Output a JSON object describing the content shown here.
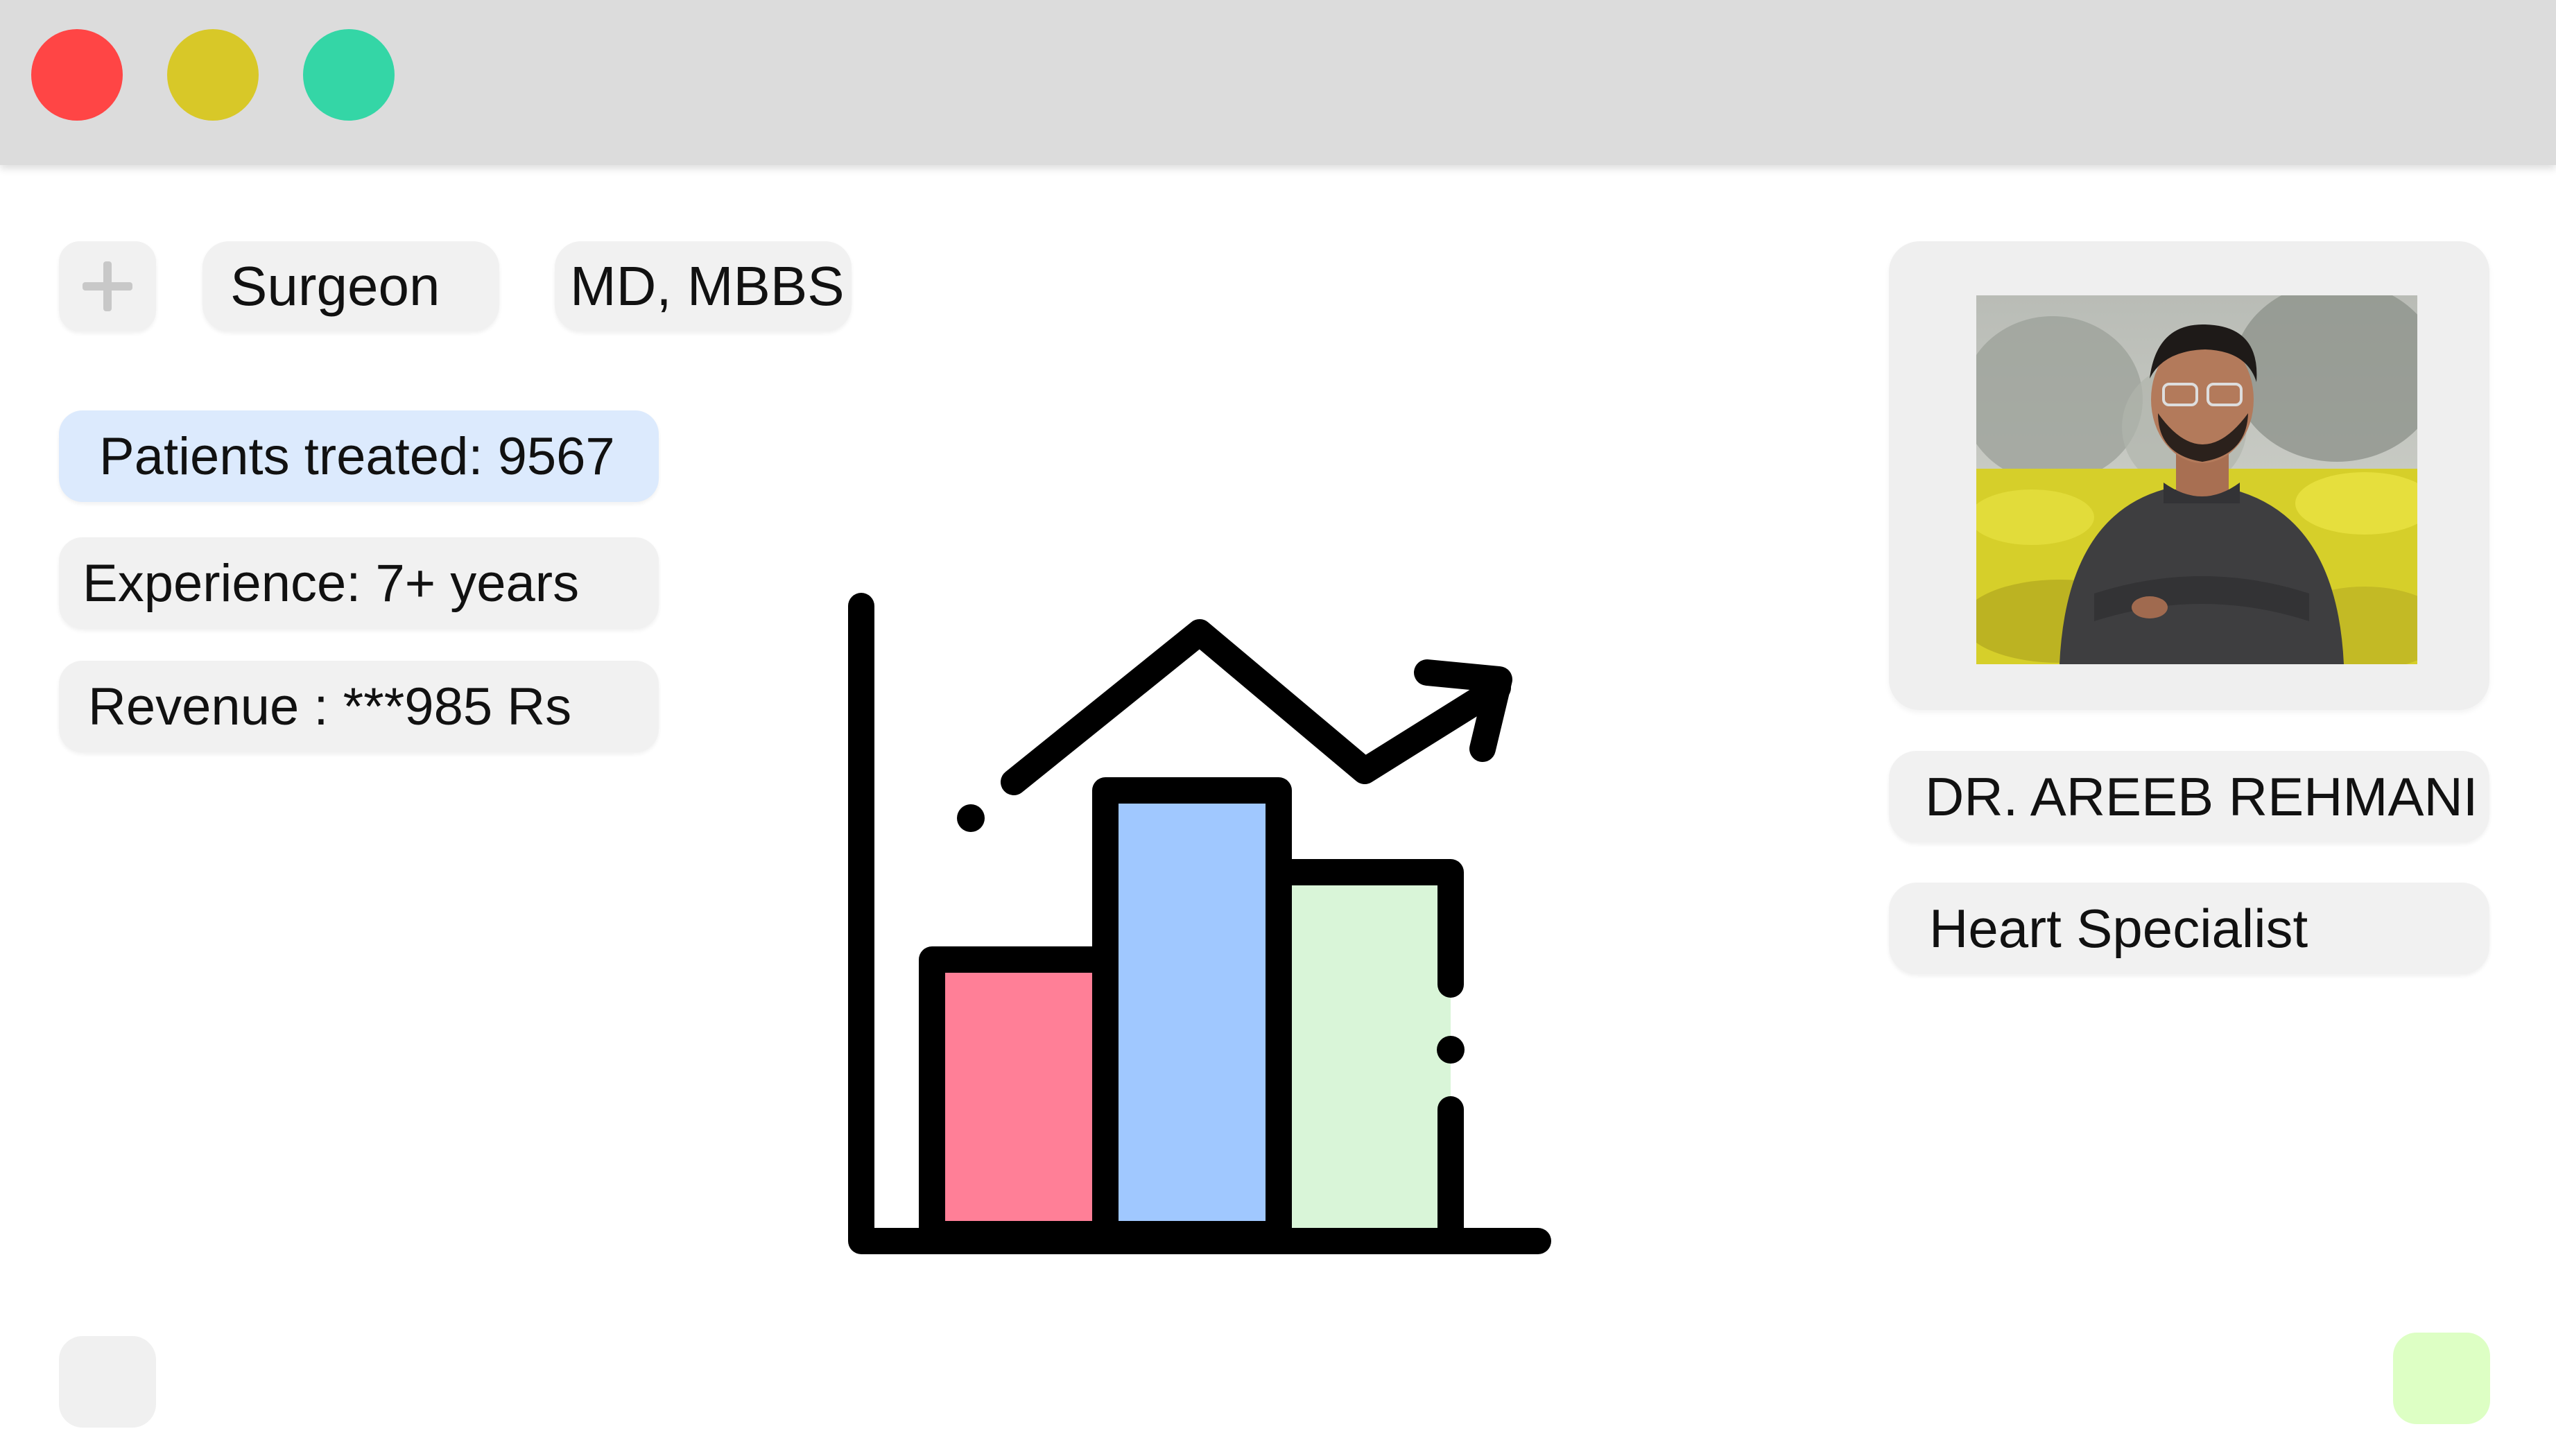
{
  "window": {
    "controls": [
      "close",
      "minimize",
      "maximize"
    ],
    "colors": {
      "close": "#ff4545",
      "minimize": "#d8c828",
      "maximize": "#34d6a6",
      "titlebar": "#dcdcdc"
    }
  },
  "tags": {
    "add_icon": "plus-icon",
    "role": "Surgeon",
    "degree": "MD, MBBS"
  },
  "stats": {
    "patients": "Patients treated: 9567",
    "experience": "Experience: 7+ years",
    "revenue": "Revenue : ***985 Rs"
  },
  "profile": {
    "name": "DR. AREEB REHMANI",
    "specialty": "Heart Specialist"
  },
  "illustration": {
    "icon": "growth-chart-icon",
    "bar_colors": [
      "#ff7f97",
      "#a0c8ff",
      "#d9f5d8"
    ],
    "bar_levels": [
      0.48,
      0.75,
      0.6
    ]
  },
  "colors": {
    "highlight_chip": "#dceafd",
    "chip": "#f1f1f1",
    "corner_right": "#ddffc4"
  }
}
